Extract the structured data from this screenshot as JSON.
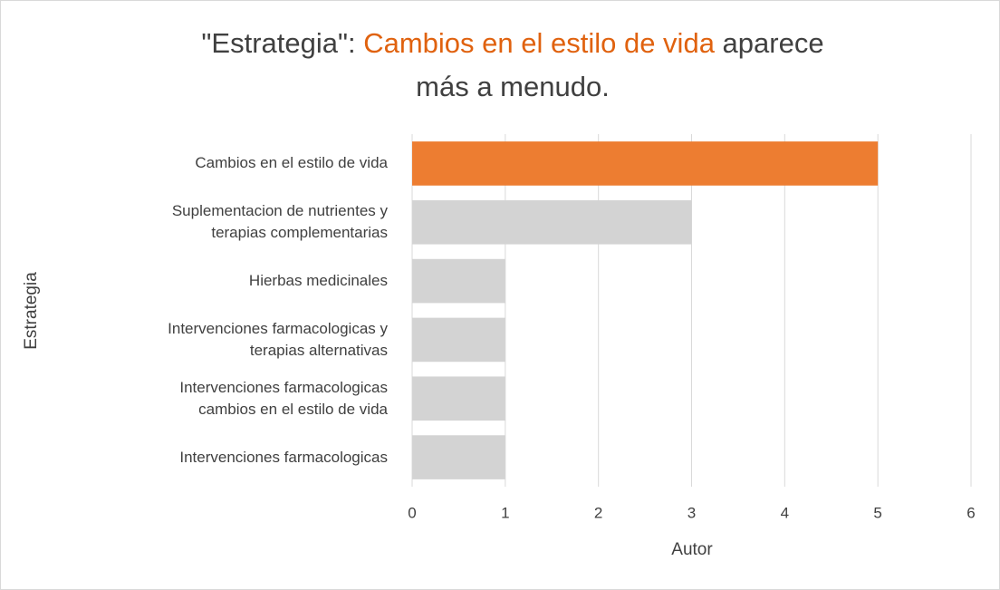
{
  "chart_data": {
    "type": "bar",
    "orientation": "horizontal",
    "title": [
      "\"Estrategia\": ",
      "Cambios en el estilo de vida",
      " aparece",
      "más a menudo."
    ],
    "title_highlight_color": "#e0620f",
    "categories": [
      "Cambios en el estilo de vida",
      "Suplementacion de nutrientes y\nterapias complementarias",
      "Hierbas medicinales",
      "Intervenciones farmacologicas y\nterapias alternativas",
      "Intervenciones farmacologicas\ncambios en el estilo de vida",
      "Intervenciones farmacologicas"
    ],
    "values": [
      5,
      3,
      1,
      1,
      1,
      1
    ],
    "colors": [
      "#ed7d31",
      "#d3d3d3",
      "#d3d3d3",
      "#d3d3d3",
      "#d3d3d3",
      "#d3d3d3"
    ],
    "xlabel": "Autor",
    "ylabel": "Estrategia",
    "xlim": [
      0,
      6
    ],
    "xticks": [
      0,
      1,
      2,
      3,
      4,
      5,
      6
    ],
    "grid": true
  }
}
